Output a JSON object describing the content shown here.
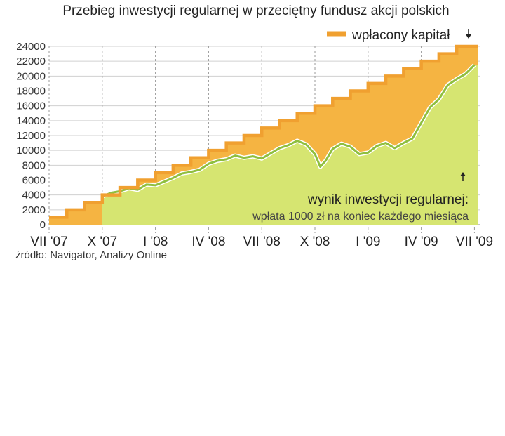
{
  "chart_data": {
    "type": "area",
    "title": "Przebieg inwestycji regularnej w przeciętny fundusz akcji polskich",
    "legend": {
      "label": "wpłacony kapitał",
      "color": "#f0a030",
      "placement": "top-right"
    },
    "ylim": [
      0,
      24000
    ],
    "yticks": [
      "0",
      "2000",
      "4000",
      "6000",
      "8000",
      "10000",
      "12000",
      "14000",
      "16000",
      "18000",
      "20000",
      "22000",
      "24000"
    ],
    "xticks": [
      {
        "label": "VII '07",
        "month": 0
      },
      {
        "label": "X '07",
        "month": 3
      },
      {
        "label": "I '08",
        "month": 6
      },
      {
        "label": "IV '08",
        "month": 9
      },
      {
        "label": "VII '08",
        "month": 12
      },
      {
        "label": "X '08",
        "month": 15
      },
      {
        "label": "I '09",
        "month": 18
      },
      {
        "label": "IV '09",
        "month": 21
      },
      {
        "label": "VII '09",
        "month": 24
      }
    ],
    "xlim": [
      0,
      24.3
    ],
    "series": [
      {
        "name": "wpłacony kapitał",
        "type": "step",
        "color": "#f0a030",
        "x": [
          0,
          1,
          2,
          3,
          4,
          5,
          6,
          7,
          8,
          9,
          10,
          11,
          12,
          13,
          14,
          15,
          16,
          17,
          18,
          19,
          20,
          21,
          22,
          23,
          24
        ],
        "values": [
          1000,
          2000,
          3000,
          4000,
          5000,
          6000,
          7000,
          8000,
          9000,
          10000,
          11000,
          12000,
          13000,
          14000,
          15000,
          16000,
          17000,
          18000,
          19000,
          20000,
          21000,
          22000,
          23000,
          24000,
          24000
        ]
      },
      {
        "name": "wynik inwestycji regularnej",
        "type": "line",
        "color": "#8fbf3f",
        "fill": "#d6e571",
        "x": [
          3,
          3.5,
          4,
          4.5,
          5,
          5.5,
          6,
          6.5,
          7,
          7.5,
          8,
          8.5,
          9,
          9.5,
          10,
          10.5,
          11,
          11.5,
          12,
          12.5,
          13,
          13.5,
          14,
          14.5,
          15,
          15.3,
          15.6,
          16,
          16.5,
          17,
          17.5,
          18,
          18.5,
          19,
          19.5,
          20,
          20.5,
          21,
          21.5,
          22,
          22.5,
          23,
          23.5,
          24
        ],
        "values": [
          3800,
          4300,
          4500,
          4900,
          4700,
          5400,
          5300,
          5800,
          6300,
          6900,
          7100,
          7400,
          8200,
          8600,
          8800,
          9300,
          9000,
          9200,
          8900,
          9600,
          10300,
          10700,
          11300,
          10800,
          9500,
          7800,
          8600,
          10200,
          10900,
          10500,
          9500,
          9700,
          10600,
          11000,
          10300,
          11000,
          11600,
          13700,
          15800,
          16900,
          18800,
          19600,
          20300,
          21500
        ]
      }
    ],
    "annotations": {
      "result_label": "wynik inwestycji regularnej:",
      "result_sublabel": "wpłata 1000 zł na koniec każdego miesiąca"
    },
    "source": "źródło: Navigator, Analizy Online"
  }
}
